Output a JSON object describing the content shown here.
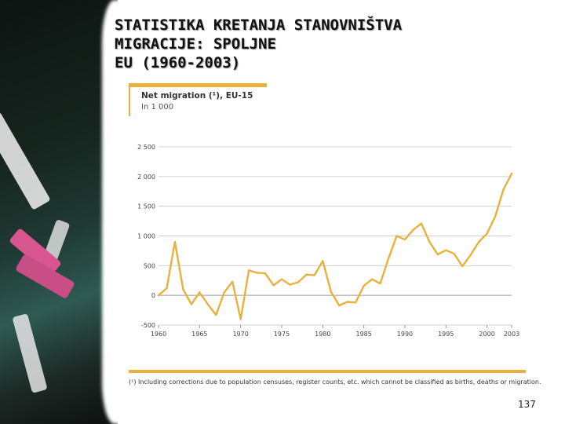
{
  "slide": {
    "title_lines": [
      "STATISTIKA KRETANJA STANOVNIŠTVA",
      "MIGRACIJE: SPOLJNE",
      "EU (1960-2003)"
    ],
    "page_number": "137"
  },
  "chart_data": {
    "type": "line",
    "title": "Net migration (¹), EU-15",
    "unit": "In 1 000",
    "xlabel": "",
    "ylabel": "",
    "xlim": [
      1960,
      2003
    ],
    "ylim": [
      -500,
      2500
    ],
    "yticks": [
      2500,
      2000,
      1500,
      1000,
      500,
      0,
      -500
    ],
    "ytick_labels": [
      "2 500",
      "2 000",
      "1 500",
      "1 000",
      "500",
      "0",
      "-500"
    ],
    "xticks": [
      1960,
      1965,
      1970,
      1975,
      1980,
      1985,
      1990,
      1995,
      2000,
      2003
    ],
    "xtick_labels": [
      "1960",
      "1965",
      "1970",
      "1975",
      "1980",
      "1985",
      "1990",
      "1995",
      "2000",
      "2003"
    ],
    "grid": true,
    "color": "#e8b13d",
    "series": [
      {
        "name": "Net migration, EU-15",
        "x": [
          1960,
          1961,
          1962,
          1963,
          1964,
          1965,
          1966,
          1967,
          1968,
          1969,
          1970,
          1971,
          1972,
          1973,
          1974,
          1975,
          1976,
          1977,
          1978,
          1979,
          1980,
          1981,
          1982,
          1983,
          1984,
          1985,
          1986,
          1987,
          1988,
          1989,
          1990,
          1991,
          1992,
          1993,
          1994,
          1995,
          1996,
          1997,
          1998,
          1999,
          2000,
          2001,
          2002,
          2003
        ],
        "values": [
          0,
          120,
          900,
          100,
          -150,
          50,
          -150,
          -330,
          50,
          230,
          -400,
          420,
          380,
          370,
          170,
          270,
          180,
          220,
          350,
          340,
          580,
          60,
          -170,
          -110,
          -120,
          160,
          270,
          200,
          620,
          1000,
          940,
          1100,
          1210,
          900,
          690,
          760,
          700,
          490,
          680,
          900,
          1040,
          1330,
          1780,
          2050
        ]
      }
    ],
    "footnote": "(¹) Including corrections due to population censuses, register counts, etc. which cannot be classified as births, deaths or migration."
  }
}
